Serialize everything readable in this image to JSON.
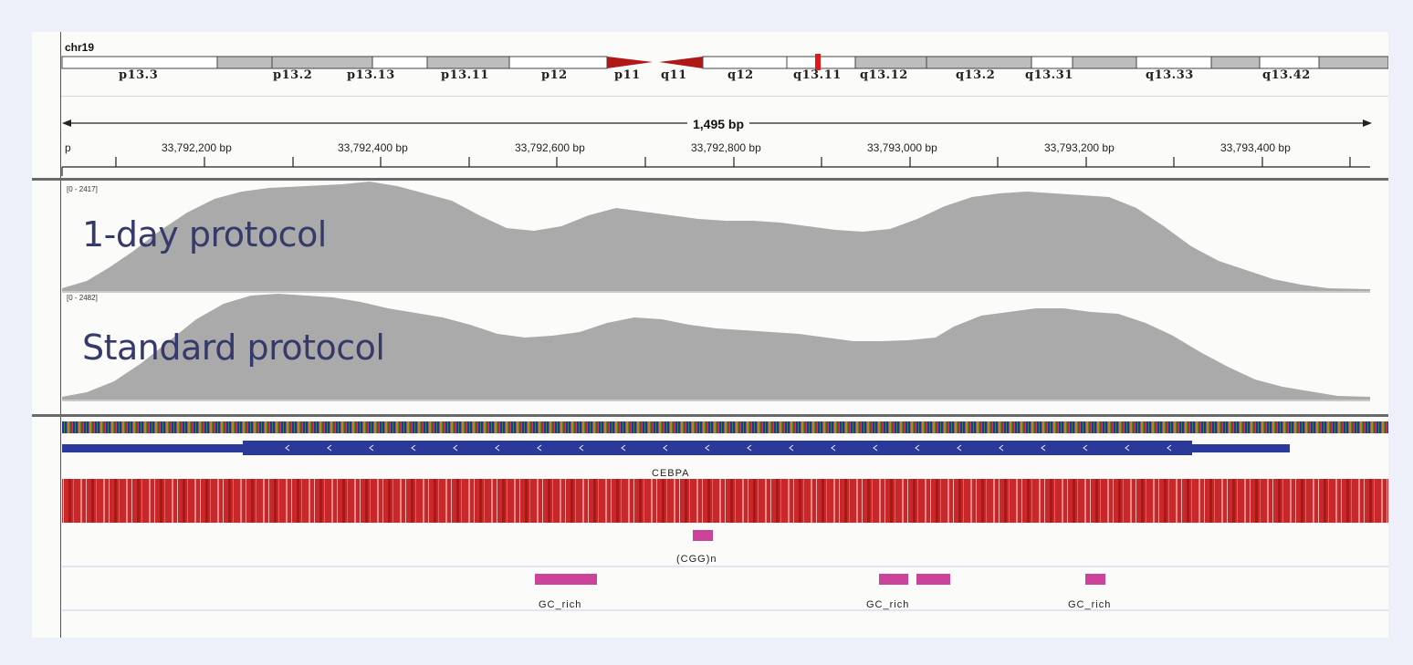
{
  "ideogram": {
    "chromosome": "chr19",
    "bands": [
      "p13.3",
      "p13.2",
      "p13.13",
      "p13.11",
      "p12",
      "p11",
      "q11",
      "q12",
      "q13.11",
      "q13.12",
      "q13.2",
      "q13.31",
      "q13.33",
      "q13.42"
    ]
  },
  "ruler": {
    "span": "1,495 bp",
    "start_label": "p",
    "ticks": [
      "33,792,200 bp",
      "33,792,400 bp",
      "33,792,600 bp",
      "33,792,800 bp",
      "33,793,000 bp",
      "33,793,200 bp",
      "33,793,400 bp"
    ]
  },
  "tracks": [
    {
      "range": "[0 - 2417]",
      "title": "1-day protocol",
      "color": "#aaaaaa"
    },
    {
      "range": "[0 - 2482]",
      "title": "Standard protocol",
      "color": "#aaaaaa"
    }
  ],
  "annotations": {
    "gene": "CEBPA",
    "repeat": "(CGG)n",
    "gc_rich": [
      "GC_rich",
      "GC_rich",
      "GC_rich"
    ]
  },
  "colors": {
    "gene": "#2b3a9a",
    "feature": "#cc4499",
    "conservation": "#c8282a",
    "overlay_text": "#363a6a",
    "coverage": "#aaaaaa"
  }
}
